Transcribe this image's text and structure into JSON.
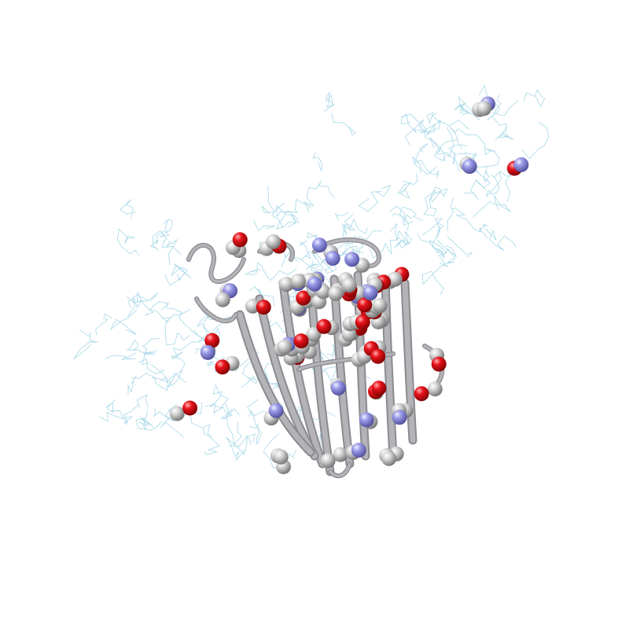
{
  "scene": {
    "title": "",
    "background": "#ffffff",
    "representation": {
      "backbone": "cartoon",
      "side_chains": "lines",
      "ligand_atoms": "spheres"
    },
    "colors": {
      "cartoon": "#b4b4b8",
      "cartoon_edge": "#8a8a90",
      "lines": "#a8d8e8",
      "carbon": "#bebebe",
      "oxygen": "#e8141c",
      "nitrogen": "#9090e6"
    }
  }
}
